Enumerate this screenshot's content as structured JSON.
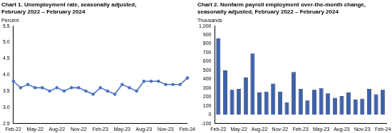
{
  "chart_data": [
    {
      "type": "line",
      "title": [
        "Chart 1. Unemployment rate, seasonally adjusted,",
        "February 2022 – February 2024"
      ],
      "ylabel": "Percent",
      "categories": [
        "Feb-22",
        null,
        null,
        "May-22",
        null,
        null,
        "Aug-22",
        null,
        null,
        "Nov-22",
        null,
        null,
        "Feb-23",
        null,
        null,
        "May-23",
        null,
        null,
        "Aug-23",
        null,
        null,
        "Nov-23",
        null,
        null,
        "Feb-24"
      ],
      "values": [
        3.8,
        3.6,
        3.7,
        3.6,
        3.6,
        3.5,
        3.6,
        3.5,
        3.6,
        3.6,
        3.5,
        3.4,
        3.6,
        3.5,
        3.4,
        3.7,
        3.6,
        3.5,
        3.8,
        3.8,
        3.8,
        3.7,
        3.7,
        3.7,
        3.9
      ],
      "color": "#4a74c0",
      "ylim": [
        2.5,
        5.5
      ],
      "yticks": [
        2.5,
        {
          "value": 3,
          "label": "3.0"
        },
        3.5,
        {
          "value": 4,
          "label": "4.0"
        },
        4.5,
        {
          "value": 5,
          "label": "5.0"
        },
        5.5
      ],
      "grid": false
    },
    {
      "type": "bar",
      "title": [
        "Chart 2. Nonfarm payroll employment over-the-month change,",
        "seasonally adjusted, February 2022 – February 2024"
      ],
      "ylabel": "Thousands",
      "categories": [
        "Feb-22",
        null,
        null,
        "May-22",
        null,
        null,
        "Aug-22",
        null,
        null,
        "Nov-22",
        null,
        null,
        "Feb-23",
        null,
        null,
        "May-23",
        null,
        null,
        "Aug-23",
        null,
        null,
        "Nov-23",
        null,
        null,
        "Feb-24"
      ],
      "values": [
        860,
        500,
        280,
        290,
        420,
        690,
        250,
        260,
        350,
        260,
        140,
        480,
        290,
        160,
        280,
        300,
        240,
        190,
        210,
        250,
        170,
        180,
        290,
        230,
        280
      ],
      "color": "#3c62ad",
      "ylim": [
        -100,
        1000
      ],
      "yticks": [
        -100,
        0,
        100,
        200,
        300,
        400,
        500,
        600,
        700,
        800,
        900,
        {
          "value": 1000,
          "label": "1,000"
        }
      ],
      "grid": false
    }
  ]
}
